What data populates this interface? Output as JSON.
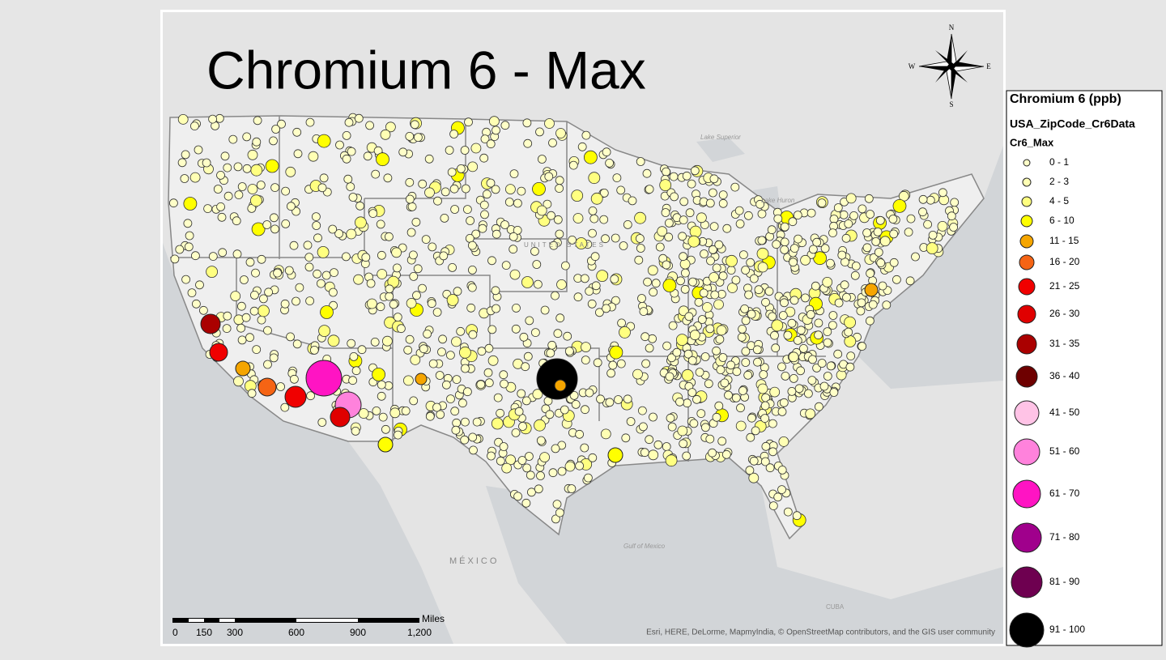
{
  "title": "Chromium 6 - Max",
  "compass": {
    "n": "N",
    "s": "S",
    "e": "E",
    "w": "W"
  },
  "map_labels": {
    "lake_superior": "Lake Superior",
    "lake_huron": "Lake Huron",
    "united_states": "UNITED STATES",
    "mexico": "MÉXICO",
    "gulf": "Gulf of Mexico",
    "cuba": "CUBA"
  },
  "scale_bar": {
    "unit": "Miles",
    "labels": [
      "0",
      "150",
      "300",
      "600",
      "900",
      "1,200"
    ]
  },
  "attribution": "Esri, HERE, DeLorme, MapmyIndia, © OpenStreetMap contributors, and the GIS user community",
  "legend": {
    "title": "Chromium 6 (ppb)",
    "layer": "USA_ZipCode_Cr6Data",
    "field": "Cr6_Max",
    "items": [
      {
        "label": "0 - 1",
        "color": "#ffffc8"
      },
      {
        "label": "2 - 3",
        "color": "#ffffb4"
      },
      {
        "label": "4 - 5",
        "color": "#ffff80"
      },
      {
        "label": "6 - 10",
        "color": "#ffff00"
      },
      {
        "label": "11 - 15",
        "color": "#f5a500"
      },
      {
        "label": "16 - 20",
        "color": "#f56414"
      },
      {
        "label": "21 - 25",
        "color": "#f00000"
      },
      {
        "label": "26 - 30",
        "color": "#e00000"
      },
      {
        "label": "31 - 35",
        "color": "#aa0000"
      },
      {
        "label": "36 - 40",
        "color": "#6e0000"
      },
      {
        "label": "41 - 50",
        "color": "#ffc3e6"
      },
      {
        "label": "51 - 60",
        "color": "#ff82dc"
      },
      {
        "label": "61 - 70",
        "color": "#ff14c3"
      },
      {
        "label": "71 - 80",
        "color": "#a0008c"
      },
      {
        "label": "81 - 90",
        "color": "#6e0050"
      },
      {
        "label": "91 - 100",
        "color": "#000000"
      }
    ]
  }
}
